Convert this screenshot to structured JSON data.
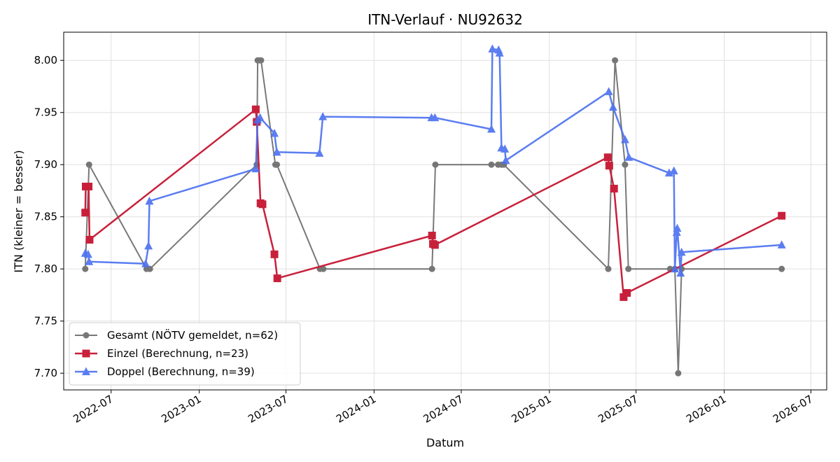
{
  "chart_data": {
    "type": "line",
    "title": "ITN-Verlauf · NU92632",
    "xlabel": "Datum",
    "ylabel": "ITN  (kleiner = besser)",
    "x_axis": "date",
    "xlim": [
      "2022-03-24",
      "2026-08-03"
    ],
    "ylim": [
      7.684,
      8.027
    ],
    "x_ticks": [
      "2022-07",
      "2023-01",
      "2023-07",
      "2024-01",
      "2024-07",
      "2025-01",
      "2025-07",
      "2026-01",
      "2026-07"
    ],
    "y_ticks": [
      "7.70",
      "7.75",
      "7.80",
      "7.85",
      "7.90",
      "7.95",
      "8.00"
    ],
    "grid": true,
    "legend_position": "lower-left",
    "series": [
      {
        "name": "Gesamt (NÖTV gemeldet, n=62)",
        "color": "#404040",
        "marker": "circle",
        "points": [
          [
            "2022-05-08",
            7.8
          ],
          [
            "2022-05-16",
            7.9
          ],
          [
            "2022-09-13",
            7.8
          ],
          [
            "2022-09-20",
            7.8
          ],
          [
            "2023-05-01",
            7.9
          ],
          [
            "2023-05-03",
            8.0
          ],
          [
            "2023-05-07",
            8.0
          ],
          [
            "2023-05-10",
            8.0
          ],
          [
            "2023-06-09",
            7.9
          ],
          [
            "2023-06-12",
            7.9
          ],
          [
            "2023-09-10",
            7.8
          ],
          [
            "2023-09-17",
            7.8
          ],
          [
            "2024-05-01",
            7.8
          ],
          [
            "2024-05-08",
            7.9
          ],
          [
            "2024-09-02",
            7.9
          ],
          [
            "2024-09-16",
            7.9
          ],
          [
            "2024-09-23",
            7.9
          ],
          [
            "2024-09-28",
            7.9
          ],
          [
            "2025-05-04",
            7.8
          ],
          [
            "2025-05-18",
            8.0
          ],
          [
            "2025-06-08",
            7.9
          ],
          [
            "2025-06-15",
            7.8
          ],
          [
            "2025-09-10",
            7.8
          ],
          [
            "2025-09-20",
            7.8
          ],
          [
            "2025-09-27",
            7.7
          ],
          [
            "2025-10-04",
            7.8
          ],
          [
            "2026-05-01",
            7.8
          ]
        ]
      },
      {
        "name": "Einzel (Berechnung, n=23)",
        "color": "#c8203b",
        "marker": "square",
        "points": [
          [
            "2022-05-08",
            7.854
          ],
          [
            "2022-05-09",
            7.879
          ],
          [
            "2022-05-15",
            7.879
          ],
          [
            "2022-05-17",
            7.828
          ],
          [
            "2023-04-29",
            7.953
          ],
          [
            "2023-05-01",
            7.941
          ],
          [
            "2023-05-09",
            7.863
          ],
          [
            "2023-05-13",
            7.862
          ],
          [
            "2023-06-07",
            7.814
          ],
          [
            "2023-06-13",
            7.791
          ],
          [
            "2024-05-01",
            7.832
          ],
          [
            "2024-05-03",
            7.824
          ],
          [
            "2024-05-07",
            7.823
          ],
          [
            "2025-05-03",
            7.907
          ],
          [
            "2025-05-06",
            7.899
          ],
          [
            "2025-05-16",
            7.877
          ],
          [
            "2025-06-05",
            7.773
          ],
          [
            "2025-06-12",
            7.777
          ],
          [
            "2026-05-01",
            7.851
          ]
        ]
      },
      {
        "name": "Doppel (Berechnung, n=39)",
        "color": "#4a6ff0",
        "marker": "triangle",
        "points": [
          [
            "2022-05-08",
            7.815
          ],
          [
            "2022-05-14",
            7.814
          ],
          [
            "2022-05-16",
            7.807
          ],
          [
            "2022-09-11",
            7.805
          ],
          [
            "2022-09-17",
            7.822
          ],
          [
            "2022-09-19",
            7.865
          ],
          [
            "2023-04-29",
            7.896
          ],
          [
            "2023-05-03",
            7.943
          ],
          [
            "2023-05-08",
            7.945
          ],
          [
            "2023-06-07",
            7.93
          ],
          [
            "2023-06-12",
            7.912
          ],
          [
            "2023-09-09",
            7.911
          ],
          [
            "2023-09-16",
            7.946
          ],
          [
            "2024-04-30",
            7.945
          ],
          [
            "2024-05-07",
            7.945
          ],
          [
            "2024-09-02",
            7.934
          ],
          [
            "2024-09-04",
            8.011
          ],
          [
            "2024-09-17",
            8.01
          ],
          [
            "2024-09-19",
            8.007
          ],
          [
            "2024-09-23",
            7.916
          ],
          [
            "2024-09-30",
            7.915
          ],
          [
            "2024-10-02",
            7.904
          ],
          [
            "2025-05-05",
            7.97
          ],
          [
            "2025-05-14",
            7.955
          ],
          [
            "2025-06-08",
            7.924
          ],
          [
            "2025-06-16",
            7.907
          ],
          [
            "2025-09-08",
            7.892
          ],
          [
            "2025-09-18",
            7.894
          ],
          [
            "2025-09-20",
            7.8
          ],
          [
            "2025-09-24",
            7.835
          ],
          [
            "2025-09-25",
            7.839
          ],
          [
            "2025-10-02",
            7.796
          ],
          [
            "2025-10-04",
            7.816
          ],
          [
            "2026-05-01",
            7.823
          ]
        ]
      }
    ]
  }
}
